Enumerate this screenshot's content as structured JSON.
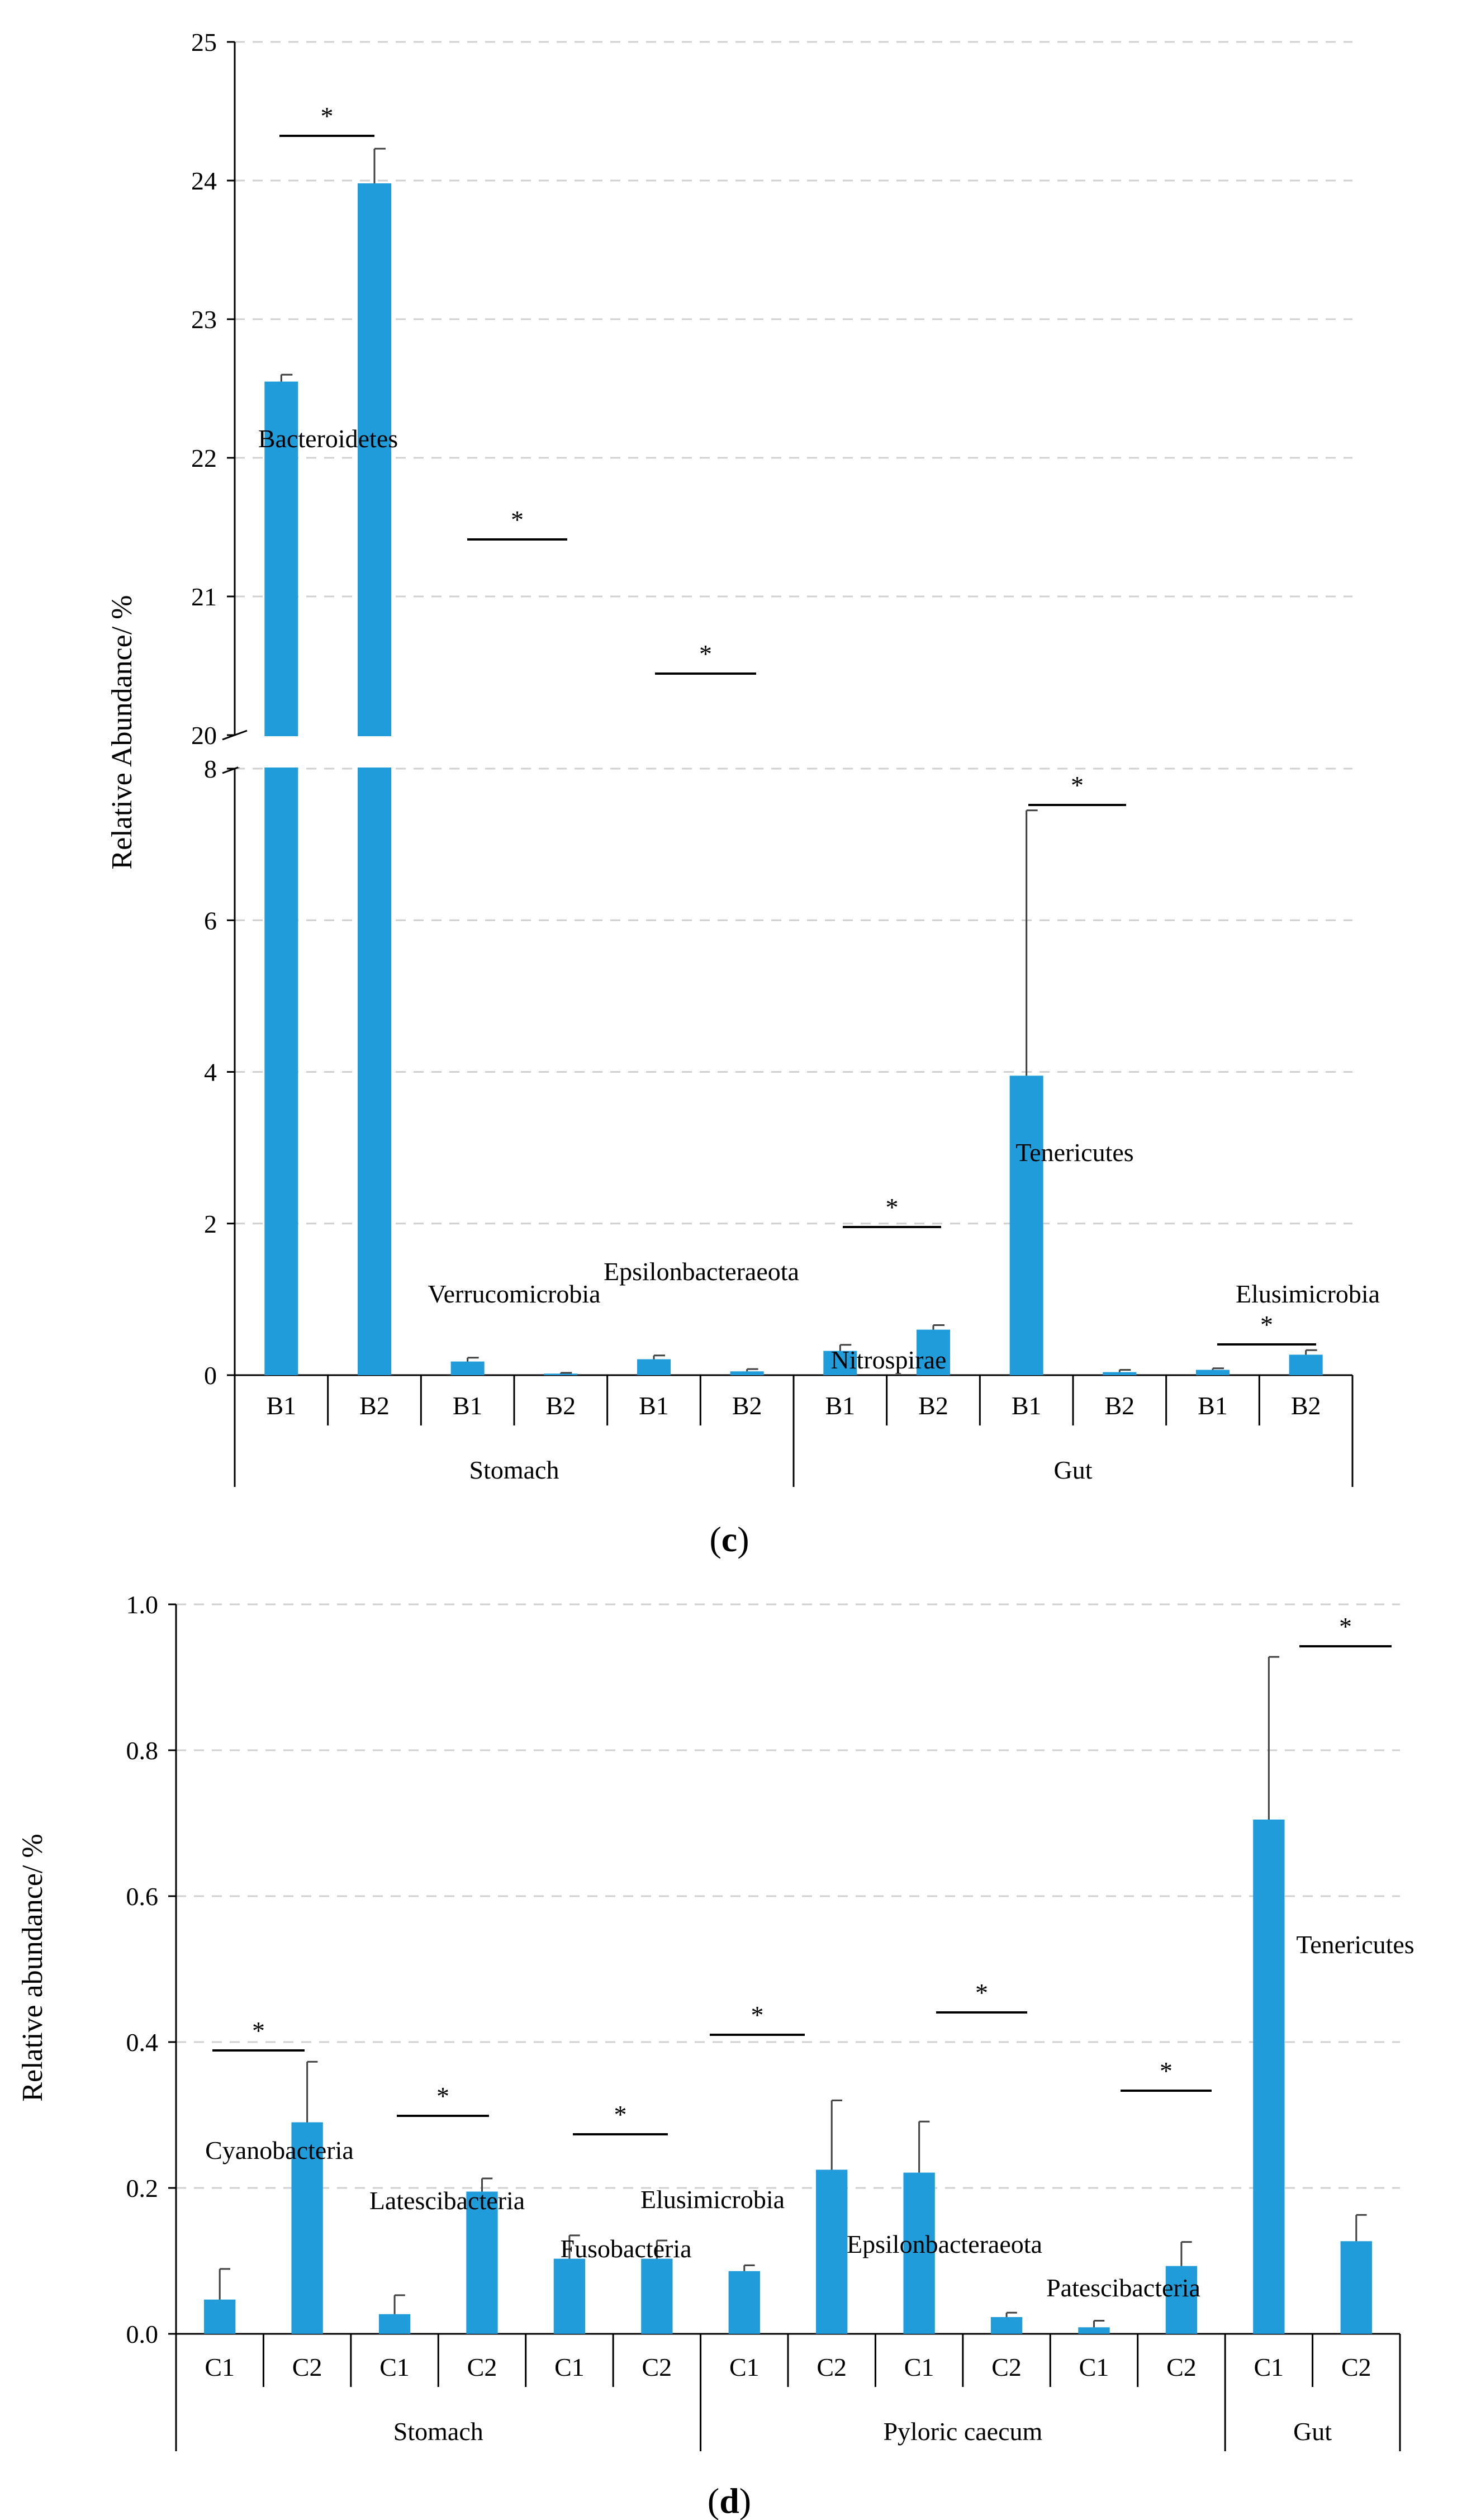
{
  "colors": {
    "bar": "#1f9cd9",
    "axis": "#000000",
    "grid": "#d0d0d0",
    "error": "#404040"
  },
  "chart_data": [
    {
      "id": "c",
      "type": "bar",
      "panel_label_parts": [
        "(",
        "c",
        ")"
      ],
      "ylabel": "Relative  Abundance/  %",
      "axis_break": true,
      "upper_ylim": [
        20,
        25
      ],
      "upper_ticks": [
        "20",
        "21",
        "22",
        "23",
        "24",
        "25"
      ],
      "lower_ylim": [
        0,
        8
      ],
      "lower_ticks": [
        "0",
        "2",
        "4",
        "6",
        "8"
      ],
      "categories": [
        "B1",
        "B2",
        "B1",
        "B2",
        "B1",
        "B2",
        "B1",
        "B2",
        "B1",
        "B2",
        "B1",
        "B2"
      ],
      "values": [
        22.55,
        23.98,
        0.18,
        0.02,
        0.21,
        0.05,
        0.32,
        0.6,
        3.95,
        0.04,
        0.07,
        0.27
      ],
      "errors": [
        0.05,
        0.25,
        0.05,
        0.01,
        0.05,
        0.03,
        0.08,
        0.06,
        3.5,
        0.03,
        0.02,
        0.06
      ],
      "groups": [
        {
          "name": "Stomach",
          "span": 6
        },
        {
          "name": "Gut",
          "span": 6
        }
      ],
      "pair_labels": [
        {
          "pair": 0,
          "text": "Bacteroidetes"
        },
        {
          "pair": 1,
          "text": "Verrucomicrobia"
        },
        {
          "pair": 2,
          "text": "Epsilonbacteraeota"
        },
        {
          "pair": 3,
          "text": "Nitrospirae"
        },
        {
          "pair": 4,
          "text": "Tenericutes"
        },
        {
          "pair": 5,
          "text": "Elusimicrobia"
        }
      ],
      "significance": [
        {
          "pair": 0,
          "text": "*"
        },
        {
          "pair": 1,
          "text": "*"
        },
        {
          "pair": 2,
          "text": "*"
        },
        {
          "pair": 3,
          "text": "*"
        },
        {
          "pair": 4,
          "text": "*"
        },
        {
          "pair": 5,
          "text": "*"
        }
      ]
    },
    {
      "id": "d",
      "type": "bar",
      "panel_label_parts": [
        "(",
        "d",
        ")"
      ],
      "ylabel": "Relative  abundance/  %",
      "ylim": [
        0,
        1.0
      ],
      "ticks": [
        "0.0",
        "0.2",
        "0.4",
        "0.6",
        "0.8",
        "1.0"
      ],
      "categories": [
        "C1",
        "C2",
        "C1",
        "C2",
        "C1",
        "C2",
        "C1",
        "C2",
        "C1",
        "C2",
        "C1",
        "C2",
        "C1",
        "C2"
      ],
      "values": [
        0.047,
        0.29,
        0.027,
        0.195,
        0.103,
        0.103,
        0.086,
        0.225,
        0.221,
        0.023,
        0.009,
        0.093,
        0.705,
        0.127
      ],
      "errors": [
        0.042,
        0.083,
        0.026,
        0.018,
        0.032,
        0.025,
        0.008,
        0.095,
        0.07,
        0.006,
        0.009,
        0.033,
        0.223,
        0.036
      ],
      "groups": [
        {
          "name": "Stomach",
          "span": 6
        },
        {
          "name": "Pyloric caecum",
          "span": 6
        },
        {
          "name": "Gut",
          "span": 2
        }
      ],
      "pair_labels": [
        {
          "pair": 0,
          "text": "Cyanobacteria"
        },
        {
          "pair": 1,
          "text": "Latescibacteria"
        },
        {
          "pair": 2,
          "text": "Fusobacteria"
        },
        {
          "pair": 3,
          "text": "Elusimicrobia"
        },
        {
          "pair": 4,
          "text": "Epsilonbacteraeota"
        },
        {
          "pair": 5,
          "text": "Patescibacteria"
        },
        {
          "pair": 6,
          "text": "Tenericutes"
        }
      ],
      "significance": [
        {
          "pair": 0,
          "text": "*"
        },
        {
          "pair": 1,
          "text": "*"
        },
        {
          "pair": 2,
          "text": "*"
        },
        {
          "pair": 3,
          "text": "*"
        },
        {
          "pair": 4,
          "text": "*"
        },
        {
          "pair": 5,
          "text": "*"
        },
        {
          "pair": 6,
          "text": "*"
        }
      ]
    }
  ]
}
